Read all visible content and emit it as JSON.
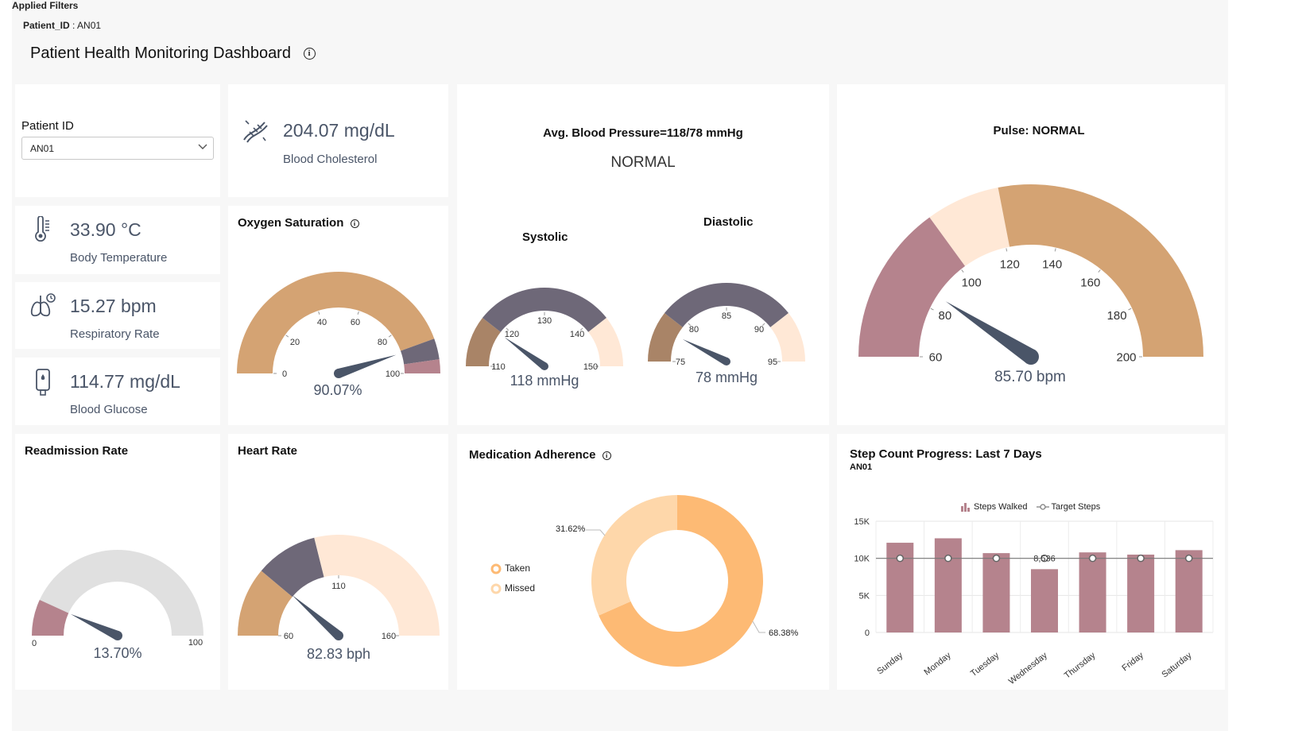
{
  "filters": {
    "title": "Applied Filters",
    "patient_label": "Patient_ID",
    "patient_sep": " : ",
    "patient_value": "AN01"
  },
  "dashboard": {
    "title": "Patient Health Monitoring Dashboard",
    "info_glyph": "i"
  },
  "patient_select": {
    "label": "Patient ID",
    "value": "AN01"
  },
  "kpis": {
    "cholesterol": {
      "value": "204.07 mg/dL",
      "label": "Blood Cholesterol",
      "icon": "artery-icon"
    },
    "temperature": {
      "value": "33.90 °C",
      "label": "Body Temperature",
      "icon": "thermometer-icon"
    },
    "respiratory": {
      "value": "15.27 bpm",
      "label": "Respiratory Rate",
      "icon": "lungs-icon"
    },
    "glucose": {
      "value": "114.77 mg/dL",
      "label": "Blood Glucose",
      "icon": "glucose-meter-icon"
    }
  },
  "oxygen": {
    "title": "Oxygen Saturation",
    "value_text": "90.07%",
    "value": 90.07,
    "ticks": [
      "0",
      "20",
      "40",
      "60",
      "80",
      "100"
    ]
  },
  "blood_pressure": {
    "title": "Avg. Blood Pressure=118/78 mmHg",
    "status": "NORMAL",
    "systolic": {
      "label": "Systolic",
      "value_text": "118 mmHg",
      "value": 118,
      "ticks": [
        "110",
        "120",
        "130",
        "140",
        "150"
      ]
    },
    "diastolic": {
      "label": "Diastolic",
      "value_text": "78 mmHg",
      "value": 78,
      "ticks": [
        "75",
        "80",
        "85",
        "90",
        "95"
      ]
    }
  },
  "pulse": {
    "title": "Pulse: NORMAL",
    "value_text": "85.70 bpm",
    "value": 85.7,
    "ticks": [
      "60",
      "80",
      "100",
      "120",
      "140",
      "160",
      "180",
      "200"
    ]
  },
  "readmission": {
    "title": "Readmission Rate",
    "value_text": "13.70%",
    "value": 13.7,
    "min_label": "0",
    "max_label": "100"
  },
  "heart_rate": {
    "title": "Heart Rate",
    "value_text": "82.83 bph",
    "value": 82.83,
    "ticks": [
      "60",
      "110",
      "160"
    ]
  },
  "medication": {
    "title": "Medication Adherence",
    "legend": [
      "Taken",
      "Missed"
    ],
    "taken_pct_label": "68.38%",
    "missed_pct_label": "31.62%"
  },
  "colors": {
    "tan": "#d4a373",
    "slate": "#6e6878",
    "mauve": "#b5838d",
    "cream": "#ffe8d6",
    "brown": "#a98467",
    "needle": "#4a5568",
    "track": "#e0e0e0",
    "orange": "#fdba74",
    "peach": "#fed7aa",
    "bar": "#b5838d"
  },
  "steps": {
    "title": "Step Count Progress: Last 7 Days",
    "subtitle": "AN01",
    "legend": [
      "Steps Walked",
      "Target Steps"
    ],
    "data_label": "8,536"
  },
  "chart_data": {
    "type": "bar",
    "title": "Step Count Progress: Last 7 Days",
    "subtitle": "AN01",
    "categories": [
      "Sunday",
      "Monday",
      "Tuesday",
      "Wednesday",
      "Thursday",
      "Friday",
      "Saturday"
    ],
    "series": [
      {
        "name": "Steps Walked",
        "type": "bar",
        "values": [
          12100,
          12700,
          10700,
          8536,
          10800,
          10500,
          11100
        ]
      },
      {
        "name": "Target Steps",
        "type": "line",
        "values": [
          10000,
          10000,
          10000,
          10000,
          10000,
          10000,
          10000
        ]
      }
    ],
    "yticks": [
      "0",
      "5K",
      "10K",
      "15K"
    ],
    "ylim": [
      0,
      15000
    ],
    "grid": true,
    "legend_position": "top"
  }
}
